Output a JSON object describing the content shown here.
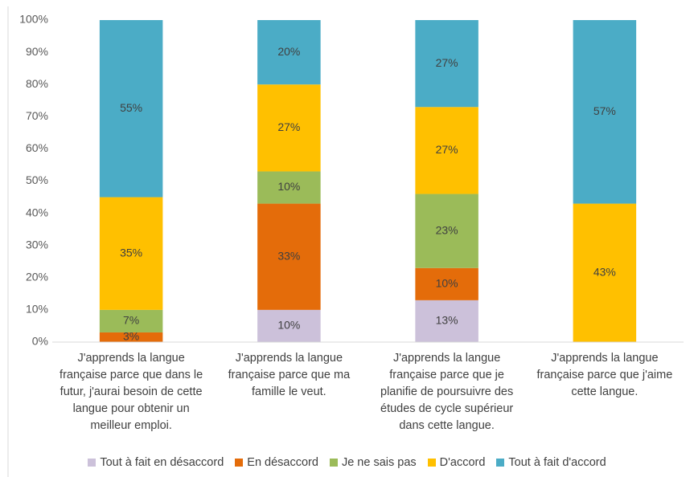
{
  "chart_data": {
    "type": "stacked_bar",
    "categories": [
      "J'apprends la langue française parce que dans le futur, j'aurai besoin de cette langue pour obtenir un meilleur emploi.",
      "J'apprends la langue française parce que ma famille le veut.",
      "J'apprends la langue française parce que je planifie de poursuivre des études de cycle supérieur dans cette langue.",
      "J'apprends la langue française parce que j'aime cette langue."
    ],
    "series": [
      {
        "name": "Tout à fait en désaccord",
        "color": "#ccc1da",
        "values": [
          0,
          10,
          13,
          0
        ],
        "value_labels": [
          null,
          "10%",
          "13%",
          null
        ]
      },
      {
        "name": "En désaccord",
        "color": "#e46c0a",
        "values": [
          3,
          33,
          10,
          0
        ],
        "value_labels": [
          "3%",
          "33%",
          "10%",
          null
        ]
      },
      {
        "name": "Je ne sais pas",
        "color": "#9bbb59",
        "values": [
          7,
          10,
          23,
          0
        ],
        "value_labels": [
          "7%",
          "10%",
          "23%",
          null
        ]
      },
      {
        "name": "D'accord",
        "color": "#ffc000",
        "values": [
          35,
          27,
          27,
          43
        ],
        "value_labels": [
          "35%",
          "27%",
          "27%",
          "43%"
        ]
      },
      {
        "name": "Tout à fait d'accord",
        "color": "#4bacc6",
        "values": [
          55,
          20,
          27,
          57
        ],
        "value_labels": [
          "55%",
          "20%",
          "27%",
          "57%"
        ]
      }
    ],
    "ylim": [
      0,
      100
    ],
    "yticks": [
      {
        "value": 0,
        "label": "0%"
      },
      {
        "value": 10,
        "label": "10%"
      },
      {
        "value": 20,
        "label": "20%"
      },
      {
        "value": 30,
        "label": "30%"
      },
      {
        "value": 40,
        "label": "40%"
      },
      {
        "value": 50,
        "label": "50%"
      },
      {
        "value": 60,
        "label": "60%"
      },
      {
        "value": 70,
        "label": "70%"
      },
      {
        "value": 80,
        "label": "80%"
      },
      {
        "value": 90,
        "label": "90%"
      },
      {
        "value": 100,
        "label": "100%"
      }
    ],
    "grid": false,
    "legend": "bottom"
  }
}
